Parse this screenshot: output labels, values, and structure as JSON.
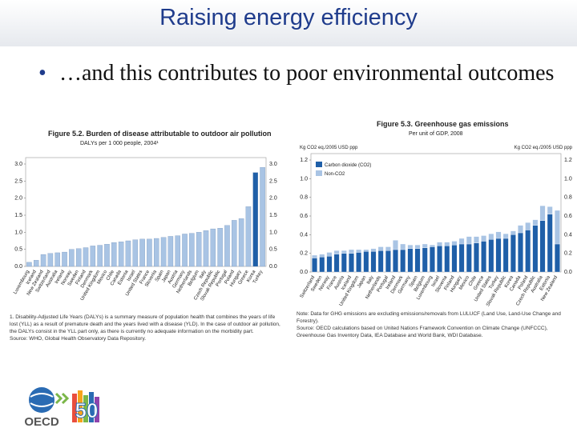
{
  "title": "Raising energy efficiency",
  "bullet": "…and this contributes to poor environmental outcomes",
  "logo": {
    "text": "OECD",
    "number": "50"
  },
  "chart_data": [
    {
      "type": "bar",
      "title": "Figure 5.2. Burden of disease attributable to outdoor air pollution",
      "subtitle": "DALYs per 1 000 people, 2004¹",
      "categories": [
        "Luxembourg",
        "Iceland",
        "New Zealand",
        "Switzerland",
        "Australia",
        "Ireland",
        "Norway",
        "Sweden",
        "Finland",
        "Denmark",
        "United Kingdom",
        "Mexico",
        "Chile",
        "Canada",
        "Estonia",
        "Israel",
        "United States",
        "France",
        "Slovenia",
        "Spain",
        "Japan",
        "Austria",
        "Germany",
        "Netherlands",
        "Belgium",
        "Italy",
        "Czech Republic",
        "Slovak Republic",
        "Portugal",
        "Poland",
        "Hungary",
        "Greece",
        "Korea",
        "Turkey"
      ],
      "values": [
        0.12,
        0.18,
        0.35,
        0.38,
        0.4,
        0.42,
        0.5,
        0.52,
        0.55,
        0.6,
        0.62,
        0.65,
        0.7,
        0.72,
        0.75,
        0.78,
        0.8,
        0.8,
        0.82,
        0.85,
        0.88,
        0.9,
        0.95,
        0.97,
        1.0,
        1.05,
        1.1,
        1.12,
        1.2,
        1.35,
        1.4,
        1.75,
        2.75,
        2.9
      ],
      "colors": [
        "#a9c4e4",
        "#a9c4e4",
        "#a9c4e4",
        "#a9c4e4",
        "#a9c4e4",
        "#a9c4e4",
        "#a9c4e4",
        "#a9c4e4",
        "#a9c4e4",
        "#a9c4e4",
        "#a9c4e4",
        "#a9c4e4",
        "#a9c4e4",
        "#a9c4e4",
        "#a9c4e4",
        "#a9c4e4",
        "#a9c4e4",
        "#a9c4e4",
        "#a9c4e4",
        "#a9c4e4",
        "#a9c4e4",
        "#a9c4e4",
        "#a9c4e4",
        "#a9c4e4",
        "#a9c4e4",
        "#a9c4e4",
        "#a9c4e4",
        "#a9c4e4",
        "#a9c4e4",
        "#a9c4e4",
        "#a9c4e4",
        "#a9c4e4",
        "#1f5fa8",
        "#a9c4e4"
      ],
      "ylim": [
        0,
        3
      ],
      "yticks": [
        {
          "value": 0,
          "label": "0.0"
        },
        {
          "value": 0.5,
          "label": "0.5"
        },
        {
          "value": 1,
          "label": "1.0"
        },
        {
          "value": 1.5,
          "label": "1.5"
        },
        {
          "value": 2,
          "label": "2.0"
        },
        {
          "value": 2.5,
          "label": "2.5"
        },
        {
          "value": 3,
          "label": "3.0"
        }
      ],
      "grid": false,
      "notes": [
        "1. Disability-Adjusted Life Years (DALYs) is a summary measure of population health that combines the years of life lost (YLL) as a result of premature death and the years lived with a disease (YLD). In the case of outdoor air pollution, the DALYs consist in the YLL part only, as there is currently no adequate information on the morbidity part.",
        "Source: WHO, Global Health Observatory Data Repository."
      ]
    },
    {
      "type": "bar",
      "stacked": true,
      "title": "Figure 5.3. Greenhouse gas emissions",
      "subtitle": "Per unit of GDP, 2008",
      "ylabel": "Kg CO2 eq./2005 USD ppp",
      "y2label": "Kg CO2 eq./2005 USD ppp",
      "categories": [
        "Switzerland",
        "Sweden",
        "Norway",
        "France",
        "Austria",
        "Iceland",
        "United Kingdom",
        "Japan",
        "Italy",
        "Netherlands",
        "Portugal",
        "Ireland",
        "Denmark",
        "Germany",
        "Spain",
        "Belgium",
        "Luxembourg",
        "Israel",
        "Slovenia",
        "Finland",
        "Hungary",
        "Mexico",
        "Chile",
        "Greece",
        "United States",
        "Turkey",
        "Slovak Republic",
        "Korea",
        "Canada",
        "Poland",
        "Czech Republic",
        "Australia",
        "Estonia",
        "New Zealand"
      ],
      "series": [
        {
          "name": "Carbon dioxide (CO2)",
          "color": "#1f5fa8",
          "values": [
            0.15,
            0.16,
            0.17,
            0.19,
            0.2,
            0.2,
            0.21,
            0.22,
            0.22,
            0.23,
            0.23,
            0.24,
            0.24,
            0.25,
            0.25,
            0.26,
            0.27,
            0.28,
            0.28,
            0.29,
            0.3,
            0.3,
            0.31,
            0.33,
            0.35,
            0.36,
            0.36,
            0.4,
            0.42,
            0.45,
            0.5,
            0.55,
            0.62,
            0.3
          ]
        },
        {
          "name": "Non-CO2",
          "color": "#a9c4e4",
          "values": [
            0.03,
            0.03,
            0.04,
            0.04,
            0.03,
            0.04,
            0.03,
            0.02,
            0.03,
            0.04,
            0.04,
            0.1,
            0.06,
            0.04,
            0.04,
            0.04,
            0.02,
            0.04,
            0.04,
            0.04,
            0.06,
            0.08,
            0.07,
            0.06,
            0.06,
            0.07,
            0.05,
            0.04,
            0.08,
            0.08,
            0.06,
            0.16,
            0.08,
            0.36
          ]
        }
      ],
      "ylim": [
        0,
        1.2
      ],
      "yticks": [
        {
          "value": 0,
          "label": "0.0"
        },
        {
          "value": 0.2,
          "label": "0.2"
        },
        {
          "value": 0.4,
          "label": "0.4"
        },
        {
          "value": 0.6,
          "label": "0.6"
        },
        {
          "value": 0.8,
          "label": "0.8"
        },
        {
          "value": 1,
          "label": "1.0"
        },
        {
          "value": 1.2,
          "label": "1.2"
        }
      ],
      "grid": false,
      "legend": "top-left",
      "notes": [
        "Note: Data for GHG emissions are excluding emissions/removals from LULUCF (Land Use, Land-Use Change and Forestry).",
        "Source: OECD calculations based on United Nations Framework Convention on Climate Change (UNFCCC), Greenhouse Gas Inventory Data, IEA Database and World Bank, WDI Database."
      ]
    }
  ]
}
